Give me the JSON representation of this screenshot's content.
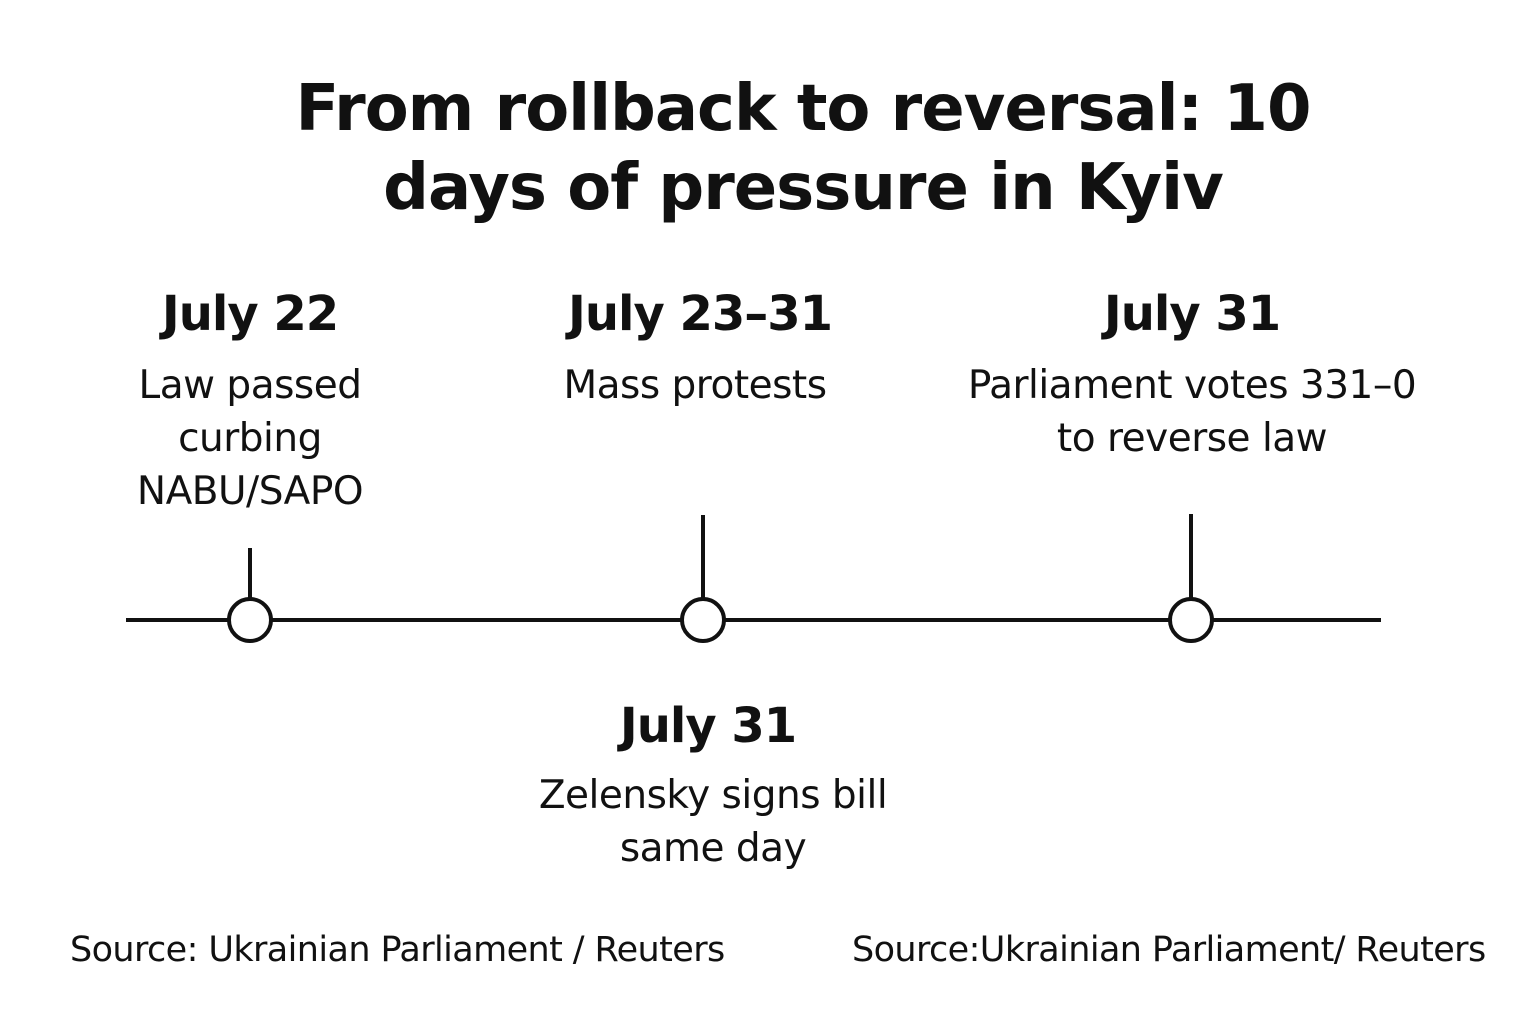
{
  "title": "From rollback to reversal: 10 days of pressure in Kyiv",
  "events": [
    {
      "date": "July 22",
      "description": "Law passed curbing NABU/SAPO"
    },
    {
      "date": "July 23–31",
      "description": "Mass protests"
    },
    {
      "date": "July 31",
      "description": "Parliament votes 331–0 to reverse law"
    },
    {
      "date": "July 31",
      "description": "Zelensky signs bill same day"
    }
  ],
  "sources": [
    "Source: Ukrainian Parliament / Reuters",
    "Source:Ukrainian Parliament/ Reuters"
  ]
}
